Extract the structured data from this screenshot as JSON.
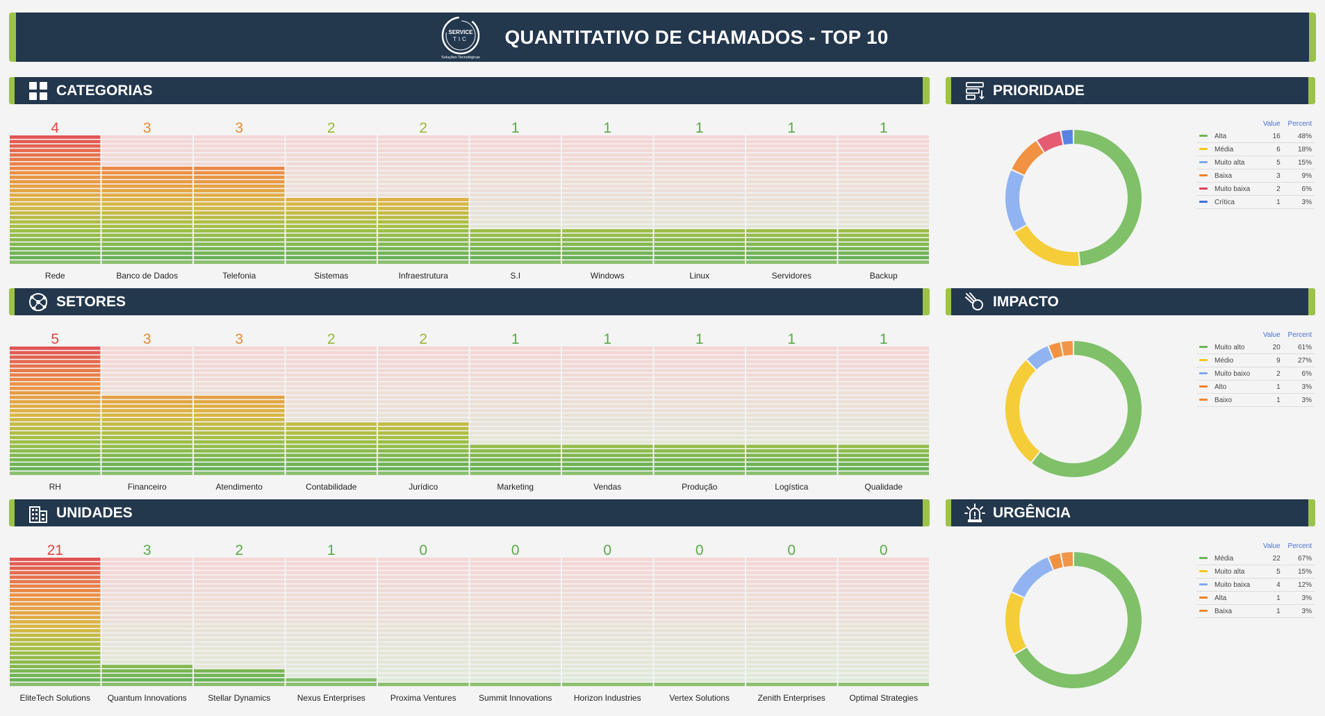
{
  "header": {
    "title": "QUANTITATIVO DE CHAMADOS - TOP 10",
    "logo_line1": "SERVICE",
    "logo_line2": "TIC",
    "logo_tagline": "Soluções Tecnológicas"
  },
  "sections": {
    "categorias": {
      "title": "CATEGORIAS",
      "icon": "grid-icon"
    },
    "setores": {
      "title": "SETORES",
      "icon": "network-icon"
    },
    "unidades": {
      "title": "UNIDADES",
      "icon": "building-icon"
    },
    "prioridade": {
      "title": "PRIORIDADE",
      "icon": "priority-icon"
    },
    "impacto": {
      "title": "IMPACTO",
      "icon": "meteor-icon"
    },
    "urgencia": {
      "title": "URGÊNCIA",
      "icon": "siren-icon"
    }
  },
  "chart_data": [
    {
      "id": "categorias",
      "type": "bar",
      "categories": [
        "Rede",
        "Banco de Dados",
        "Telefonia",
        "Sistemas",
        "Infraestrutura",
        "S.I",
        "Windows",
        "Linux",
        "Servidores",
        "Backup"
      ],
      "values": [
        4,
        3,
        3,
        2,
        2,
        1,
        1,
        1,
        1,
        1
      ],
      "ylim": [
        0,
        4
      ]
    },
    {
      "id": "setores",
      "type": "bar",
      "categories": [
        "RH",
        "Financeiro",
        "Atendimento",
        "Contabilidade",
        "Jurídico",
        "Marketing",
        "Vendas",
        "Produção",
        "Logística",
        "Qualidade"
      ],
      "values": [
        5,
        3,
        3,
        2,
        2,
        1,
        1,
        1,
        1,
        1
      ],
      "ylim": [
        0,
        5
      ]
    },
    {
      "id": "unidades",
      "type": "bar",
      "categories": [
        "EliteTech Solutions",
        "Quantum Innovations",
        "Stellar Dynamics",
        "Nexus Enterprises",
        "Proxima Ventures",
        "Summit Innovations",
        "Horizon Industries",
        "Vertex Solutions",
        "Zenith Enterprises",
        "Optimal Strategies"
      ],
      "values": [
        21,
        3,
        2,
        1,
        0,
        0,
        0,
        0,
        0,
        0
      ],
      "ylim": [
        0,
        21
      ]
    },
    {
      "id": "prioridade",
      "type": "pie",
      "value_header": "Value",
      "percent_header": "Percent",
      "labels": [
        "Alta",
        "Média",
        "Muito alta",
        "Baixa",
        "Muito baixa",
        "Crítica"
      ],
      "values": [
        16,
        6,
        5,
        3,
        2,
        1
      ],
      "percents": [
        "48%",
        "18%",
        "15%",
        "9%",
        "6%",
        "3%"
      ],
      "colors": [
        "#6ab650",
        "#f5c518",
        "#7fa7f0",
        "#f07f22",
        "#e0405a",
        "#3d6fdf"
      ]
    },
    {
      "id": "impacto",
      "type": "pie",
      "value_header": "Value",
      "percent_header": "Percent",
      "labels": [
        "Muito alto",
        "Médio",
        "Muito baixo",
        "Alto",
        "Baixo"
      ],
      "values": [
        20,
        9,
        2,
        1,
        1
      ],
      "percents": [
        "61%",
        "27%",
        "6%",
        "3%",
        "3%"
      ],
      "colors": [
        "#6ab650",
        "#f5c518",
        "#7fa7f0",
        "#f07f22",
        "#f0852a"
      ]
    },
    {
      "id": "urgencia",
      "type": "pie",
      "value_header": "Value",
      "percent_header": "Percent",
      "labels": [
        "Média",
        "Muito alta",
        "Muito baixa",
        "Alta",
        "Baixa"
      ],
      "values": [
        22,
        5,
        4,
        1,
        1
      ],
      "percents": [
        "67%",
        "15%",
        "12%",
        "3%",
        "3%"
      ],
      "colors": [
        "#6ab650",
        "#f5c518",
        "#7fa7f0",
        "#f07f22",
        "#f0852a"
      ]
    }
  ]
}
